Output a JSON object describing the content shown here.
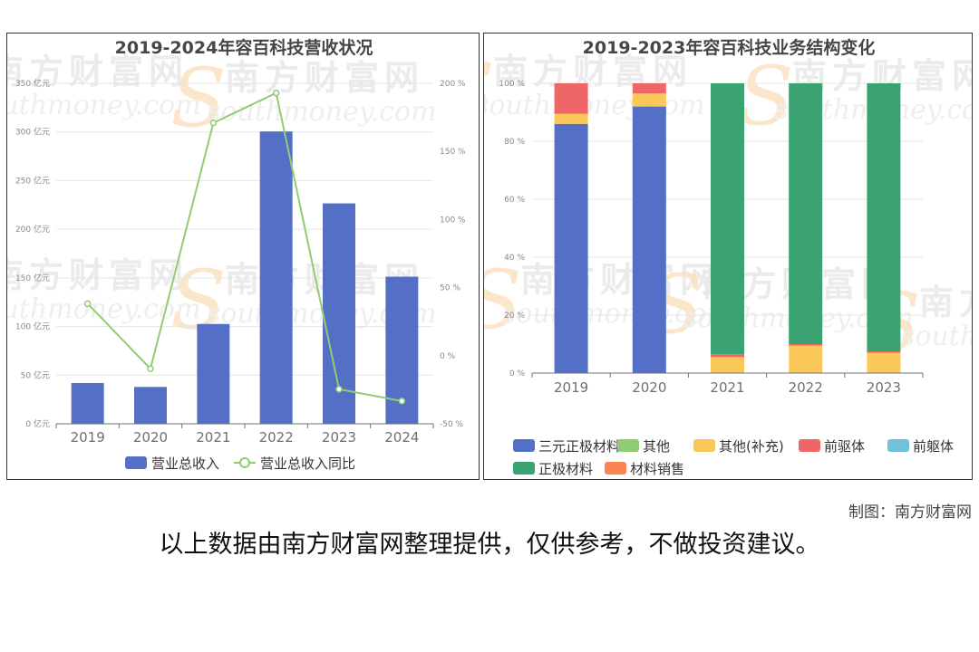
{
  "chart_data": [
    {
      "type": "bar",
      "title": "2019-2024年容百科技营收状况",
      "categories": [
        "2019",
        "2020",
        "2021",
        "2022",
        "2023",
        "2024"
      ],
      "series": [
        {
          "name": "营业总收入",
          "type": "bar",
          "axis": "left",
          "color": "#5470c6",
          "values": [
            41.9,
            37.9,
            102.6,
            300.5,
            226.6,
            151.2
          ]
        },
        {
          "name": "营业总收入同比",
          "type": "line",
          "axis": "right",
          "color": "#91cc75",
          "values": [
            38.2,
            -9.6,
            170.9,
            192.9,
            -24.6,
            -33.3
          ]
        }
      ],
      "y_left": {
        "min": 0,
        "max": 350,
        "step": 50,
        "unit": "亿元",
        "ticks": [
          "0 亿元",
          "50 亿元",
          "100 亿元",
          "150 亿元",
          "200 亿元",
          "250 亿元",
          "300 亿元",
          "350 亿元"
        ]
      },
      "y_right": {
        "min": -50,
        "max": 200,
        "step": 50,
        "unit": "%",
        "ticks": [
          "-50 %",
          "0 %",
          "50 %",
          "100 %",
          "150 %",
          "200 %"
        ]
      },
      "legend": "bottom-center",
      "grid": true
    },
    {
      "type": "bar",
      "stacked": true,
      "title": "2019-2023年容百科技业务结构变化",
      "categories": [
        "2019",
        "2020",
        "2021",
        "2022",
        "2023"
      ],
      "series": [
        {
          "name": "三元正极材料",
          "color": "#5470c6",
          "values": [
            86.0,
            92.0,
            0,
            0,
            0
          ]
        },
        {
          "name": "其他",
          "color": "#91cc75",
          "values": [
            0,
            0,
            0,
            0,
            0
          ]
        },
        {
          "name": "其他(补充)",
          "color": "#fac858",
          "values": [
            3.5,
            4.5,
            5.5,
            9.5,
            7.0
          ]
        },
        {
          "name": "前驱体",
          "color": "#ee6666",
          "values": [
            10.5,
            3.5,
            1.0,
            0.5,
            0.5
          ]
        },
        {
          "name": "前躯体",
          "color": "#73c0de",
          "values": [
            0,
            0,
            0,
            0,
            0
          ]
        },
        {
          "name": "正极材料",
          "color": "#3ba272",
          "values": [
            0,
            0,
            93.5,
            90.0,
            92.5
          ]
        },
        {
          "name": "材料销售",
          "color": "#fc8452",
          "values": [
            0,
            0,
            0,
            0,
            0
          ]
        }
      ],
      "y": {
        "min": 0,
        "max": 100,
        "step": 20,
        "unit": "%",
        "ticks": [
          "0 %",
          "20 %",
          "40 %",
          "60 %",
          "80 %",
          "100 %"
        ]
      },
      "legend": "bottom-center",
      "grid": true
    }
  ],
  "watermark": {
    "name": "南方财富网",
    "url": "southmoney.com"
  },
  "footer": {
    "credit": "制图：南方财富网",
    "disclaimer": "以上数据由南方财富网整理提供，仅供参考，不做投资建议。"
  }
}
